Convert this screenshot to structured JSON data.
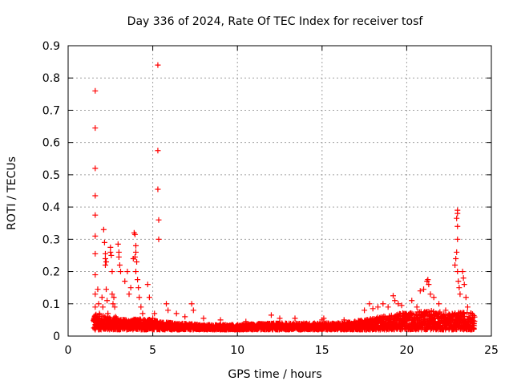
{
  "chart_data": {
    "type": "scatter",
    "title": "Day 336 of 2024, Rate Of TEC Index for receiver tosf",
    "xlabel": "GPS time / hours",
    "ylabel": "ROTI / TECUs",
    "xlim": [
      0,
      25
    ],
    "ylim": [
      0,
      0.9
    ],
    "xticks": [
      0,
      5,
      10,
      15,
      20,
      25
    ],
    "yticks": [
      0,
      0.1,
      0.2,
      0.3,
      0.4,
      0.5,
      0.6,
      0.7,
      0.8,
      0.9
    ],
    "xtick_labels": [
      "0",
      "5",
      "10",
      "15",
      "20",
      "25"
    ],
    "ytick_labels": [
      "0",
      "0.1",
      "0.2",
      "0.3",
      "0.4",
      "0.5",
      "0.6",
      "0.7",
      "0.8",
      "0.9"
    ],
    "grid": true,
    "marker": "+",
    "series": [
      {
        "name": "ROTI",
        "color": "#ff0000",
        "points": [
          [
            1.6,
            0.76
          ],
          [
            1.6,
            0.645
          ],
          [
            1.6,
            0.52
          ],
          [
            1.6,
            0.435
          ],
          [
            1.6,
            0.375
          ],
          [
            1.6,
            0.31
          ],
          [
            1.6,
            0.255
          ],
          [
            1.6,
            0.19
          ],
          [
            1.6,
            0.13
          ],
          [
            1.6,
            0.09
          ],
          [
            1.6,
            0.06
          ],
          [
            1.6,
            0.035
          ],
          [
            1.6,
            0.02
          ],
          [
            1.75,
            0.145
          ],
          [
            1.8,
            0.1
          ],
          [
            1.85,
            0.07
          ],
          [
            1.9,
            0.05
          ],
          [
            1.95,
            0.03
          ],
          [
            2.0,
            0.12
          ],
          [
            2.05,
            0.09
          ],
          [
            2.1,
            0.33
          ],
          [
            2.15,
            0.29
          ],
          [
            2.2,
            0.255
          ],
          [
            2.2,
            0.24
          ],
          [
            2.25,
            0.23
          ],
          [
            2.2,
            0.22
          ],
          [
            2.25,
            0.145
          ],
          [
            2.3,
            0.11
          ],
          [
            2.35,
            0.07
          ],
          [
            2.4,
            0.04
          ],
          [
            2.5,
            0.275
          ],
          [
            2.5,
            0.26
          ],
          [
            2.55,
            0.25
          ],
          [
            2.6,
            0.2
          ],
          [
            2.6,
            0.13
          ],
          [
            2.65,
            0.1
          ],
          [
            2.7,
            0.12
          ],
          [
            2.75,
            0.09
          ],
          [
            2.8,
            0.06
          ],
          [
            2.95,
            0.285
          ],
          [
            3.0,
            0.26
          ],
          [
            3.0,
            0.245
          ],
          [
            3.05,
            0.22
          ],
          [
            3.1,
            0.2
          ],
          [
            3.1,
            0.045
          ],
          [
            3.2,
            0.03
          ],
          [
            3.35,
            0.17
          ],
          [
            3.4,
            0.05
          ],
          [
            3.5,
            0.2
          ],
          [
            3.6,
            0.13
          ],
          [
            3.7,
            0.15
          ],
          [
            3.85,
            0.24
          ],
          [
            3.9,
            0.32
          ],
          [
            3.95,
            0.315
          ],
          [
            4.0,
            0.28
          ],
          [
            4.0,
            0.26
          ],
          [
            3.95,
            0.245
          ],
          [
            4.05,
            0.23
          ],
          [
            4.0,
            0.2
          ],
          [
            4.1,
            0.175
          ],
          [
            4.15,
            0.15
          ],
          [
            4.2,
            0.12
          ],
          [
            4.3,
            0.09
          ],
          [
            4.4,
            0.07
          ],
          [
            4.5,
            0.05
          ],
          [
            4.7,
            0.16
          ],
          [
            4.8,
            0.12
          ],
          [
            5.0,
            0.055
          ],
          [
            5.1,
            0.07
          ],
          [
            5.3,
            0.84
          ],
          [
            5.3,
            0.575
          ],
          [
            5.3,
            0.455
          ],
          [
            5.35,
            0.36
          ],
          [
            5.35,
            0.3
          ],
          [
            5.8,
            0.1
          ],
          [
            5.9,
            0.08
          ],
          [
            6.4,
            0.07
          ],
          [
            6.9,
            0.06
          ],
          [
            7.3,
            0.1
          ],
          [
            7.4,
            0.08
          ],
          [
            8.0,
            0.055
          ],
          [
            9.0,
            0.05
          ],
          [
            10.5,
            0.045
          ],
          [
            12.0,
            0.065
          ],
          [
            12.5,
            0.055
          ],
          [
            13.4,
            0.055
          ],
          [
            15.0,
            0.05
          ],
          [
            15.1,
            0.055
          ],
          [
            16.3,
            0.05
          ],
          [
            17.5,
            0.08
          ],
          [
            17.8,
            0.1
          ],
          [
            18.0,
            0.085
          ],
          [
            18.3,
            0.09
          ],
          [
            18.6,
            0.1
          ],
          [
            18.9,
            0.09
          ],
          [
            19.2,
            0.125
          ],
          [
            19.3,
            0.11
          ],
          [
            19.5,
            0.1
          ],
          [
            19.7,
            0.095
          ],
          [
            19.9,
            0.07
          ],
          [
            20.3,
            0.11
          ],
          [
            20.6,
            0.09
          ],
          [
            20.8,
            0.14
          ],
          [
            21.0,
            0.145
          ],
          [
            21.2,
            0.17
          ],
          [
            21.25,
            0.175
          ],
          [
            21.3,
            0.16
          ],
          [
            21.4,
            0.13
          ],
          [
            21.6,
            0.12
          ],
          [
            21.9,
            0.1
          ],
          [
            22.3,
            0.08
          ],
          [
            22.85,
            0.22
          ],
          [
            22.9,
            0.24
          ],
          [
            22.95,
            0.26
          ],
          [
            23.0,
            0.3
          ],
          [
            23.0,
            0.34
          ],
          [
            22.95,
            0.365
          ],
          [
            23.0,
            0.38
          ],
          [
            23.0,
            0.39
          ],
          [
            23.0,
            0.2
          ],
          [
            23.05,
            0.17
          ],
          [
            23.1,
            0.15
          ],
          [
            23.15,
            0.13
          ],
          [
            23.3,
            0.2
          ],
          [
            23.35,
            0.18
          ],
          [
            23.4,
            0.16
          ],
          [
            23.5,
            0.12
          ],
          [
            23.6,
            0.09
          ],
          [
            23.8,
            0.07
          ]
        ]
      }
    ],
    "dense_band": {
      "x_range": [
        1.5,
        24.0
      ],
      "y_base": 0.02,
      "y_upper": [
        [
          1.5,
          0.07
        ],
        [
          2.5,
          0.06
        ],
        [
          3.5,
          0.05
        ],
        [
          4.5,
          0.055
        ],
        [
          5.5,
          0.045
        ],
        [
          6.5,
          0.04
        ],
        [
          8.0,
          0.035
        ],
        [
          10.0,
          0.035
        ],
        [
          12.0,
          0.04
        ],
        [
          14.0,
          0.04
        ],
        [
          16.0,
          0.04
        ],
        [
          17.5,
          0.05
        ],
        [
          18.5,
          0.06
        ],
        [
          19.5,
          0.07
        ],
        [
          20.5,
          0.075
        ],
        [
          21.5,
          0.08
        ],
        [
          22.5,
          0.07
        ],
        [
          23.5,
          0.075
        ],
        [
          24.0,
          0.07
        ]
      ]
    }
  }
}
